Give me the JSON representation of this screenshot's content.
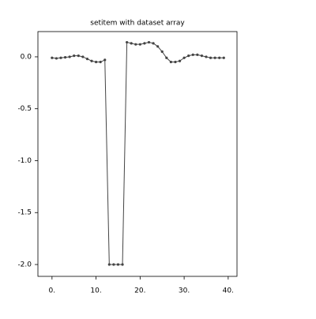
{
  "chart_data": {
    "type": "line",
    "title": "setitem with dataset array",
    "x": [
      0,
      1,
      2,
      3,
      4,
      5,
      6,
      7,
      8,
      9,
      10,
      11,
      12,
      13,
      14,
      15,
      16,
      17,
      18,
      19,
      20,
      21,
      22,
      23,
      24,
      25,
      26,
      27,
      28,
      29,
      30,
      31,
      32,
      33,
      34,
      35,
      36,
      37,
      38,
      39
    ],
    "series": [
      {
        "color": "#444444",
        "values": [
          -0.01,
          -0.015,
          -0.01,
          -0.005,
          0.0,
          0.01,
          0.01,
          0.0,
          -0.02,
          -0.04,
          -0.05,
          -0.05,
          -0.03,
          -2.0,
          -2.0,
          -2.0,
          -2.0,
          0.14,
          0.13,
          0.12,
          0.12,
          0.13,
          0.14,
          0.13,
          0.1,
          0.05,
          -0.01,
          -0.05,
          -0.05,
          -0.04,
          -0.01,
          0.01,
          0.02,
          0.02,
          0.01,
          0.0,
          -0.01,
          -0.01,
          -0.01,
          -0.01
        ]
      }
    ],
    "xlim": [
      -3.2,
      42
    ],
    "xticks": [
      {
        "value": 0,
        "label": "0."
      },
      {
        "value": 10,
        "label": "10."
      },
      {
        "value": 20,
        "label": "20."
      },
      {
        "value": 30,
        "label": "30."
      },
      {
        "value": 40,
        "label": "40."
      }
    ],
    "ylim": [
      -2.114,
      0.243
    ],
    "yticks": [
      {
        "value": 0,
        "label": "0.0"
      },
      -0.5,
      {
        "value": -1,
        "label": "-1.0"
      },
      -1.5,
      {
        "value": -2,
        "label": "-2.0"
      }
    ],
    "grid": false
  }
}
